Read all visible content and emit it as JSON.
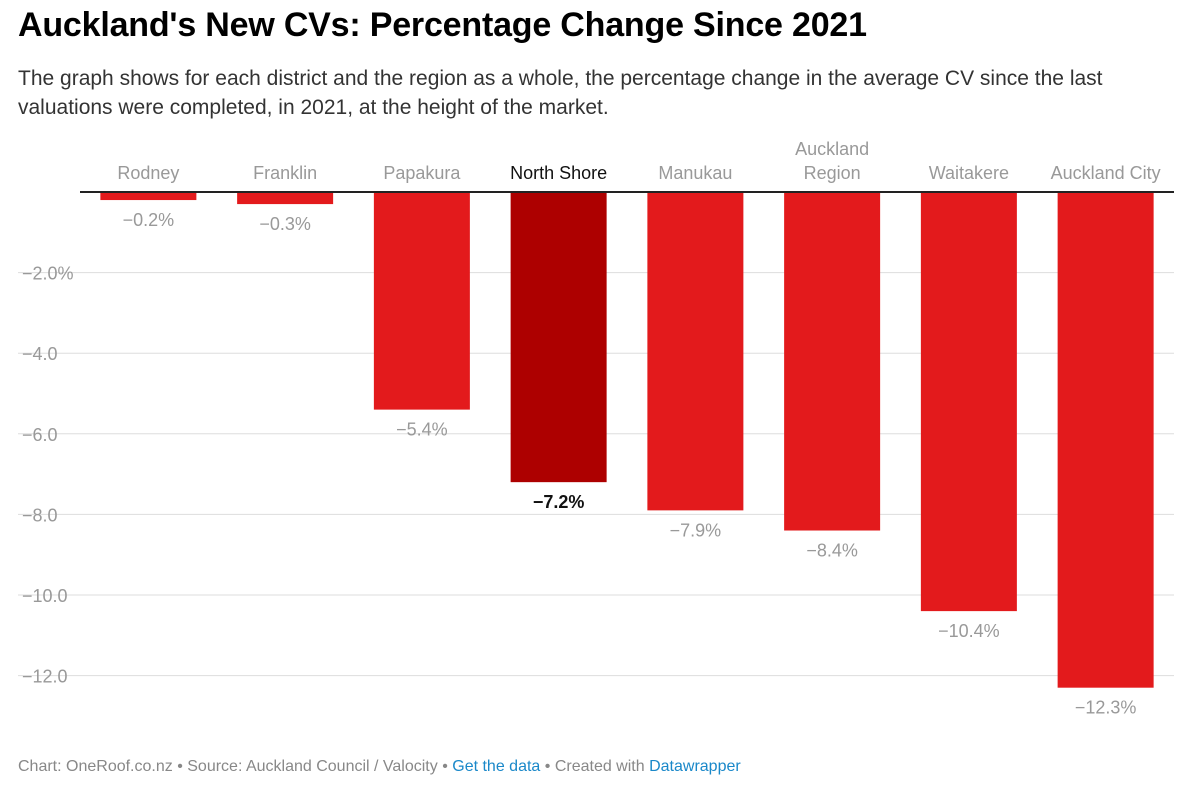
{
  "title": "Auckland's New CVs: Percentage Change Since 2021",
  "subtitle": "The graph shows for each district and the region as a whole, the percentage change in the average CV since the last valuations were completed, in 2021, at the height of the market.",
  "colors": {
    "bar": "#e31a1c",
    "highlight": "#ad0000",
    "grid": "#dddddd",
    "axis": "#222222",
    "label_muted": "#999999",
    "link": "#1a88c9"
  },
  "chart_data": {
    "type": "bar",
    "orientation": "vertical",
    "categories": [
      [
        "Rodney"
      ],
      [
        "Franklin"
      ],
      [
        "Papakura"
      ],
      [
        "North Shore"
      ],
      [
        "Manukau"
      ],
      [
        "Auckland",
        "Region"
      ],
      [
        "Waitakere"
      ],
      [
        "Auckland City"
      ]
    ],
    "values": [
      -0.2,
      -0.3,
      -5.4,
      -7.2,
      -7.9,
      -8.4,
      -10.4,
      -12.3
    ],
    "value_labels": [
      "−0.2%",
      "−0.3%",
      "−5.4%",
      "−7.2%",
      "−7.9%",
      "−8.4%",
      "−10.4%",
      "−12.3%"
    ],
    "highlight_index": 3,
    "yticks": [
      -2,
      -4,
      -6,
      -8,
      -10,
      -12
    ],
    "ytick_labels": [
      "−2.0%",
      "−4.0",
      "−6.0",
      "−8.0",
      "−10.0",
      "−12.0"
    ],
    "ylim": [
      -12.3,
      0
    ],
    "grid": true,
    "xlabel": "",
    "ylabel": ""
  },
  "footer": {
    "chart_credit": "Chart: OneRoof.co.nz",
    "separator": " • ",
    "source": "Source: Auckland Council / Valocity",
    "get_data": "Get the data",
    "created_with": "Created with",
    "datawrapper": "Datawrapper"
  }
}
